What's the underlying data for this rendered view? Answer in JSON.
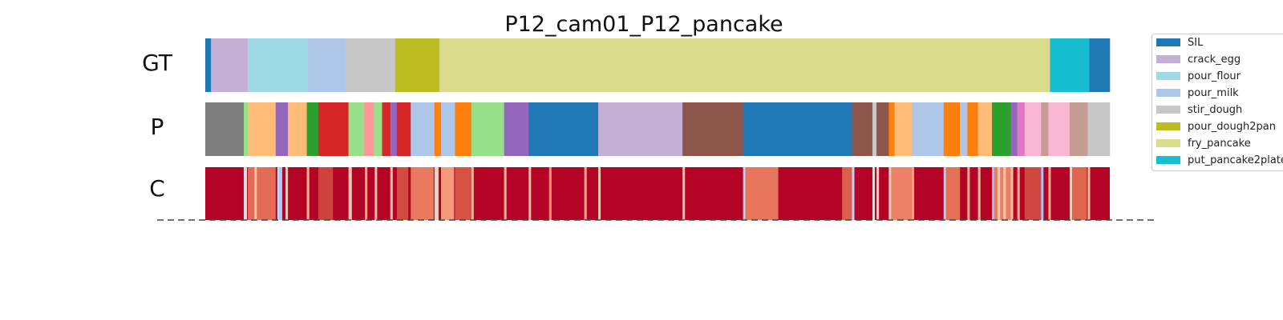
{
  "chart_data": {
    "type": "segmentation_timeline",
    "title": "P12_cam01_P12_pancake",
    "rows": [
      "GT",
      "P",
      "C"
    ],
    "classes": [
      {
        "name": "SIL",
        "color": "#1f77b4"
      },
      {
        "name": "crack_egg",
        "color": "#c5b0d5"
      },
      {
        "name": "pour_flour",
        "color": "#9edae5"
      },
      {
        "name": "pour_milk",
        "color": "#aec7e8"
      },
      {
        "name": "stir_dough",
        "color": "#c7c7c7"
      },
      {
        "name": "pour_dough2pan",
        "color": "#bcbd22"
      },
      {
        "name": "fry_pancake",
        "color": "#dbdb8d"
      },
      {
        "name": "put_pancake2plate",
        "color": "#17becf"
      }
    ],
    "x_range": [
      0,
      1105
    ],
    "gt_segments": [
      {
        "start": 0,
        "end": 7,
        "label": "SIL"
      },
      {
        "start": 7,
        "end": 52,
        "label": "crack_egg"
      },
      {
        "start": 52,
        "end": 125,
        "label": "pour_flour"
      },
      {
        "start": 125,
        "end": 172,
        "label": "pour_milk"
      },
      {
        "start": 172,
        "end": 232,
        "label": "stir_dough"
      },
      {
        "start": 232,
        "end": 286,
        "label": "pour_dough2pan"
      },
      {
        "start": 286,
        "end": 1032,
        "label": "fry_pancake"
      },
      {
        "start": 1032,
        "end": 1080,
        "label": "put_pancake2plate"
      },
      {
        "start": 1080,
        "end": 1105,
        "label": "SIL"
      }
    ],
    "prediction_segments": [
      {
        "start": 0,
        "end": 47,
        "color": "#7f7f7f"
      },
      {
        "start": 47,
        "end": 52,
        "color": "#98df8a"
      },
      {
        "start": 52,
        "end": 86,
        "color": "#ffbb78"
      },
      {
        "start": 86,
        "end": 101,
        "color": "#9467bd"
      },
      {
        "start": 101,
        "end": 124,
        "color": "#ffbb78"
      },
      {
        "start": 124,
        "end": 138,
        "color": "#2ca02c"
      },
      {
        "start": 138,
        "end": 175,
        "color": "#d62728"
      },
      {
        "start": 175,
        "end": 194,
        "color": "#98df8a"
      },
      {
        "start": 194,
        "end": 206,
        "color": "#ff9896"
      },
      {
        "start": 206,
        "end": 216,
        "color": "#98df8a"
      },
      {
        "start": 216,
        "end": 226,
        "color": "#d62728"
      },
      {
        "start": 226,
        "end": 234,
        "color": "#9467bd"
      },
      {
        "start": 234,
        "end": 251,
        "color": "#d62728"
      },
      {
        "start": 251,
        "end": 280,
        "color": "#aec7e8"
      },
      {
        "start": 280,
        "end": 288,
        "color": "#ff7f0e"
      },
      {
        "start": 288,
        "end": 305,
        "color": "#aec7e8"
      },
      {
        "start": 305,
        "end": 325,
        "color": "#ff7f0e"
      },
      {
        "start": 325,
        "end": 365,
        "color": "#98df8a"
      },
      {
        "start": 365,
        "end": 395,
        "color": "#9467bd"
      },
      {
        "start": 395,
        "end": 480,
        "color": "#1f77b4"
      },
      {
        "start": 480,
        "end": 583,
        "color": "#c5b0d5"
      },
      {
        "start": 583,
        "end": 657,
        "color": "#8c564b"
      },
      {
        "start": 657,
        "end": 790,
        "color": "#1f77b4"
      },
      {
        "start": 790,
        "end": 815,
        "color": "#8c564b"
      },
      {
        "start": 815,
        "end": 820,
        "color": "#c7c7c7"
      },
      {
        "start": 820,
        "end": 835,
        "color": "#8c564b"
      },
      {
        "start": 835,
        "end": 842,
        "color": "#ff7f0e"
      },
      {
        "start": 842,
        "end": 863,
        "color": "#ffbb78"
      },
      {
        "start": 863,
        "end": 902,
        "color": "#aec7e8"
      },
      {
        "start": 902,
        "end": 922,
        "color": "#ff7f0e"
      },
      {
        "start": 922,
        "end": 931,
        "color": "#aec7e8"
      },
      {
        "start": 931,
        "end": 944,
        "color": "#ff7f0e"
      },
      {
        "start": 944,
        "end": 961,
        "color": "#ffbb78"
      },
      {
        "start": 961,
        "end": 984,
        "color": "#2ca02c"
      },
      {
        "start": 984,
        "end": 992,
        "color": "#9467bd"
      },
      {
        "start": 992,
        "end": 1001,
        "color": "#e377c2"
      },
      {
        "start": 1001,
        "end": 1021,
        "color": "#f7b6d2"
      },
      {
        "start": 1021,
        "end": 1030,
        "color": "#c49c94"
      },
      {
        "start": 1030,
        "end": 1056,
        "color": "#f7b6d2"
      },
      {
        "start": 1056,
        "end": 1078,
        "color": "#c49c94"
      },
      {
        "start": 1078,
        "end": 1105,
        "color": "#c7c7c7"
      }
    ],
    "confidence_base_color": "#b40426",
    "confidence_dips": [
      {
        "at": 47,
        "width": 4,
        "color": "#dddcdc"
      },
      {
        "at": 52,
        "width": 34,
        "color": "#e36c55"
      },
      {
        "at": 60,
        "width": 3,
        "color": "#f5c0a7"
      },
      {
        "at": 88,
        "width": 3,
        "color": "#d6dce4"
      },
      {
        "at": 90,
        "width": 4,
        "color": "#aac7fd"
      },
      {
        "at": 98,
        "width": 3,
        "color": "#f2cbb7"
      },
      {
        "at": 124,
        "width": 3,
        "color": "#f7b89c"
      },
      {
        "at": 138,
        "width": 18,
        "color": "#cd423b"
      },
      {
        "at": 175,
        "width": 4,
        "color": "#f2cbb7"
      },
      {
        "at": 195,
        "width": 3,
        "color": "#f7a889"
      },
      {
        "at": 207,
        "width": 3,
        "color": "#f6bea4"
      },
      {
        "at": 226,
        "width": 3,
        "color": "#f4c5ad"
      },
      {
        "at": 234,
        "width": 14,
        "color": "#d24b40"
      },
      {
        "at": 251,
        "width": 28,
        "color": "#e97a5f"
      },
      {
        "at": 280,
        "width": 5,
        "color": "#edd1c2"
      },
      {
        "at": 288,
        "width": 16,
        "color": "#f49a7b"
      },
      {
        "at": 305,
        "width": 20,
        "color": "#d65244"
      },
      {
        "at": 325,
        "width": 3,
        "color": "#f7af91"
      },
      {
        "at": 365,
        "width": 3,
        "color": "#f7b79b"
      },
      {
        "at": 395,
        "width": 3,
        "color": "#f6bfa6"
      },
      {
        "at": 420,
        "width": 3,
        "color": "#f29274"
      },
      {
        "at": 463,
        "width": 3,
        "color": "#f7a98b"
      },
      {
        "at": 480,
        "width": 3,
        "color": "#f5c2aa"
      },
      {
        "at": 583,
        "width": 3,
        "color": "#f3c7b1"
      },
      {
        "at": 657,
        "width": 3,
        "color": "#c3d5f4"
      },
      {
        "at": 660,
        "width": 40,
        "color": "#e8765c"
      },
      {
        "at": 778,
        "width": 12,
        "color": "#dd5f4b"
      },
      {
        "at": 790,
        "width": 3,
        "color": "#bfd3f6"
      },
      {
        "at": 815,
        "width": 3,
        "color": "#dedcdb"
      },
      {
        "at": 820,
        "width": 3,
        "color": "#ead4c8"
      },
      {
        "at": 835,
        "width": 3,
        "color": "#f2cbb7"
      },
      {
        "at": 838,
        "width": 25,
        "color": "#ec8165"
      },
      {
        "at": 863,
        "width": 3,
        "color": "#f6a385"
      },
      {
        "at": 902,
        "width": 3,
        "color": "#b9d0f9"
      },
      {
        "at": 905,
        "width": 17,
        "color": "#e57058"
      },
      {
        "at": 931,
        "width": 3,
        "color": "#f7ad90"
      },
      {
        "at": 944,
        "width": 3,
        "color": "#f7b599"
      },
      {
        "at": 961,
        "width": 3,
        "color": "#9ebeff"
      },
      {
        "at": 964,
        "width": 22,
        "color": "#ec7f63"
      },
      {
        "at": 968,
        "width": 3,
        "color": "#f5c4ac"
      },
      {
        "at": 975,
        "width": 3,
        "color": "#f4c6af"
      },
      {
        "at": 984,
        "width": 3,
        "color": "#f6bda2"
      },
      {
        "at": 992,
        "width": 3,
        "color": "#f7b093"
      },
      {
        "at": 1001,
        "width": 20,
        "color": "#d0473d"
      },
      {
        "at": 1021,
        "width": 3,
        "color": "#a5c3fe"
      },
      {
        "at": 1030,
        "width": 3,
        "color": "#f7a688"
      },
      {
        "at": 1056,
        "width": 3,
        "color": "#f1ccb8"
      },
      {
        "at": 1059,
        "width": 18,
        "color": "#e0654f"
      },
      {
        "at": 1078,
        "width": 3,
        "color": "#f7b89c"
      }
    ],
    "legend_position": "right"
  }
}
